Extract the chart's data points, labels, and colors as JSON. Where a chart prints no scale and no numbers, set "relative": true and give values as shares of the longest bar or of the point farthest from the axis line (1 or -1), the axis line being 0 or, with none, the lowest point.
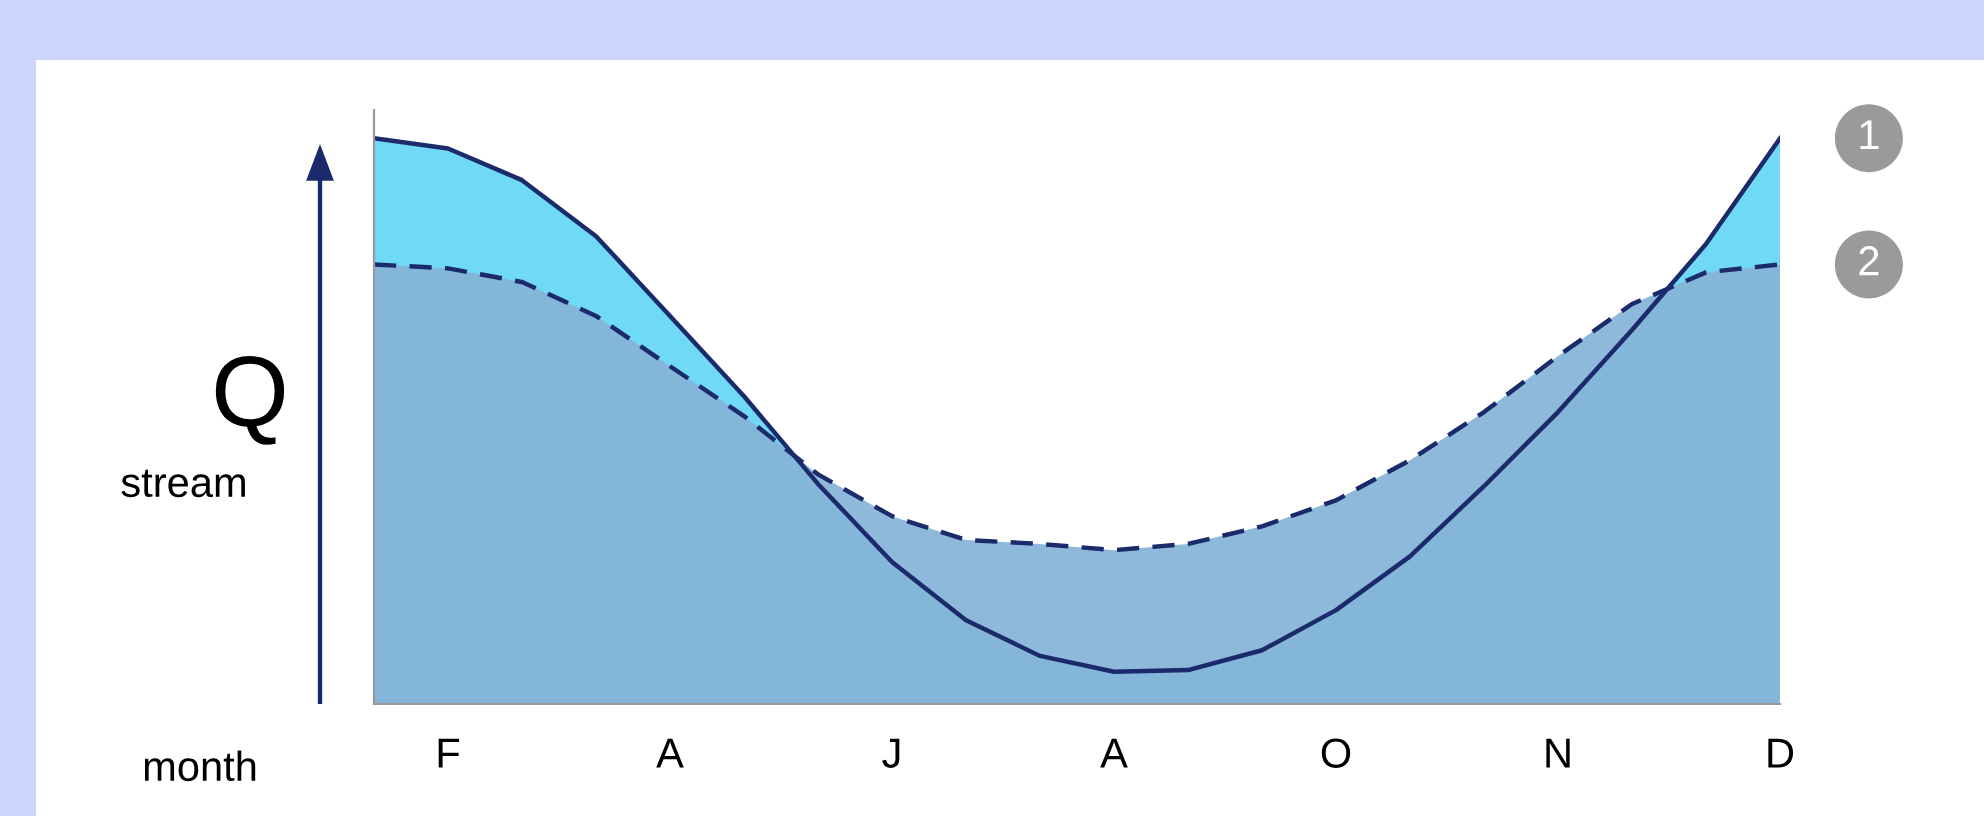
{
  "chart_data": {
    "type": "area",
    "relative": true,
    "xlabel": "month",
    "ylabel": "Q",
    "annotations": [
      "stream"
    ],
    "categories": [
      null,
      "F",
      null,
      null,
      "A",
      null,
      null,
      "J",
      null,
      null,
      "A",
      null,
      null,
      "O",
      null,
      null,
      "N",
      null,
      null,
      "D"
    ],
    "tick_labels": "x",
    "legend": false,
    "series": [
      {
        "name": "1",
        "color": "#70d9f5",
        "line_style": "solid",
        "values": [
          1.0,
          0.982,
          0.926,
          0.827,
          0.686,
          0.544,
          0.389,
          0.251,
          0.148,
          0.085,
          0.057,
          0.06,
          0.095,
          0.166,
          0.261,
          0.385,
          0.516,
          0.661,
          0.813,
          1.0
        ]
      },
      {
        "name": "2",
        "color": "#86b3d7",
        "line_style": "dashed",
        "values": [
          0.777,
          0.77,
          0.746,
          0.686,
          0.597,
          0.509,
          0.406,
          0.332,
          0.29,
          0.283,
          0.272,
          0.283,
          0.314,
          0.36,
          0.431,
          0.516,
          0.615,
          0.707,
          0.763,
          0.777
        ]
      }
    ]
  }
}
